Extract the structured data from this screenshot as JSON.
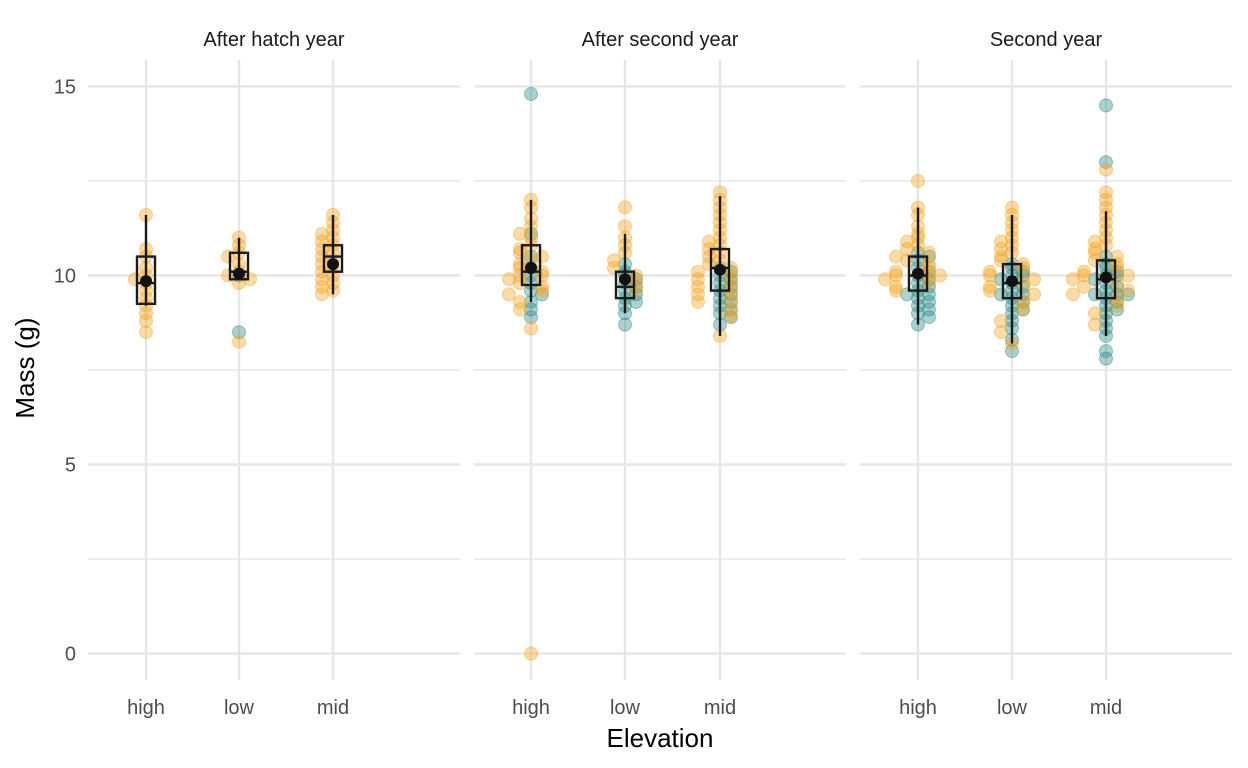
{
  "chart_data": {
    "type": "scatter",
    "title": "",
    "xlabel": "Elevation",
    "ylabel": "Mass (g)",
    "ylim": [
      -0.7,
      15.7
    ],
    "yticks": [
      0,
      5,
      10,
      15
    ],
    "grid": true,
    "categories": [
      "high",
      "low",
      "mid"
    ],
    "colors": {
      "orange": "#F5A623",
      "teal": "#2E8B8B",
      "box": "#1a1a1a",
      "grid": "#e6e6e6"
    },
    "panels": [
      {
        "title": "After hatch year",
        "groups": [
          {
            "category": "high",
            "box": {
              "lower": 9.2,
              "q1": 9.25,
              "median": 9.8,
              "q3": 10.5,
              "upper": 11.6,
              "mean": 9.85
            },
            "points": {
              "orange": [
                11.6,
                10.7,
                10.5,
                10.2,
                10.0,
                9.9,
                9.8,
                9.6,
                9.4,
                9.2,
                9.0,
                8.8,
                8.5
              ],
              "teal": []
            }
          },
          {
            "category": "low",
            "box": {
              "lower": 9.9,
              "q1": 9.9,
              "median": 10.1,
              "q3": 10.6,
              "upper": 11.0,
              "mean": 10.05
            },
            "points": {
              "orange": [
                11.0,
                10.8,
                10.6,
                10.5,
                10.3,
                10.1,
                10.0,
                9.9,
                9.8,
                8.25
              ],
              "teal": [
                8.5,
                10.0
              ]
            }
          },
          {
            "category": "mid",
            "box": {
              "lower": 9.5,
              "q1": 10.1,
              "median": 10.5,
              "q3": 10.8,
              "upper": 11.6,
              "mean": 10.3
            },
            "points": {
              "orange": [
                11.6,
                11.4,
                11.2,
                11.1,
                11.0,
                10.9,
                10.8,
                10.7,
                10.6,
                10.5,
                10.4,
                10.3,
                10.2,
                10.1,
                10.0,
                9.9,
                9.8,
                9.7,
                9.6,
                9.5
              ],
              "teal": []
            }
          }
        ]
      },
      {
        "title": "After second year",
        "groups": [
          {
            "category": "high",
            "box": {
              "lower": 9.3,
              "q1": 9.75,
              "median": 10.1,
              "q3": 10.8,
              "upper": 12.0,
              "mean": 10.2
            },
            "points": {
              "orange": [
                12.0,
                11.8,
                11.5,
                11.3,
                11.1,
                11.0,
                10.8,
                10.7,
                10.6,
                10.5,
                10.4,
                10.3,
                10.2,
                10.1,
                10.0,
                10.0,
                9.9,
                9.8,
                9.7,
                9.6,
                9.5,
                9.3,
                9.1,
                8.6,
                0.0
              ],
              "teal": [
                14.8,
                11.1,
                10.5,
                10.2,
                10.0,
                9.8,
                9.6,
                9.5,
                9.3,
                9.1,
                8.9
              ]
            }
          },
          {
            "category": "low",
            "box": {
              "lower": 9.0,
              "q1": 9.4,
              "median": 9.7,
              "q3": 10.1,
              "upper": 11.1,
              "mean": 9.9
            },
            "points": {
              "orange": [
                11.8,
                11.3,
                11.0,
                10.8,
                10.6,
                10.4,
                10.2,
                10.0,
                9.8,
                9.6
              ],
              "teal": [
                10.3,
                10.1,
                10.0,
                9.9,
                9.8,
                9.7,
                9.6,
                9.5,
                9.4,
                9.3,
                9.2,
                9.0,
                8.7
              ]
            }
          },
          {
            "category": "mid",
            "box": {
              "lower": 8.4,
              "q1": 9.6,
              "median": 10.2,
              "q3": 10.7,
              "upper": 12.1,
              "mean": 10.15
            },
            "points": {
              "orange": [
                12.2,
                12.0,
                11.8,
                11.6,
                11.4,
                11.2,
                11.0,
                10.9,
                10.8,
                10.7,
                10.6,
                10.5,
                10.4,
                10.3,
                10.2,
                10.1,
                10.0,
                9.9,
                9.8,
                9.7,
                9.6,
                9.5,
                9.4,
                9.3,
                9.1,
                8.9,
                8.4
              ],
              "teal": [
                10.2,
                10.1,
                10.0,
                9.9,
                9.8,
                9.7,
                9.6,
                9.5,
                9.4,
                9.3,
                9.2,
                9.1,
                9.0,
                8.9,
                8.7
              ]
            }
          }
        ]
      },
      {
        "title": "Second year",
        "groups": [
          {
            "category": "high",
            "box": {
              "lower": 8.7,
              "q1": 9.6,
              "median": 10.0,
              "q3": 10.5,
              "upper": 11.8,
              "mean": 10.05
            },
            "points": {
              "orange": [
                12.5,
                11.8,
                11.6,
                11.3,
                11.1,
                11.0,
                10.9,
                10.8,
                10.7,
                10.6,
                10.5,
                10.4,
                10.3,
                10.2,
                10.1,
                10.0,
                10.0,
                10.0,
                9.9,
                9.8,
                9.7,
                9.6
              ],
              "teal": [
                10.6,
                10.5,
                10.4,
                10.2,
                10.1,
                10.0,
                9.9,
                9.8,
                9.7,
                9.6,
                9.5,
                9.5,
                9.4,
                9.3,
                9.2,
                9.1,
                9.0,
                8.9,
                8.7
              ]
            }
          },
          {
            "category": "low",
            "box": {
              "lower": 8.2,
              "q1": 9.4,
              "median": 9.8,
              "q3": 10.3,
              "upper": 11.6,
              "mean": 9.85
            },
            "points": {
              "orange": [
                11.8,
                11.6,
                11.4,
                11.2,
                11.0,
                10.9,
                10.8,
                10.7,
                10.6,
                10.5,
                10.4,
                10.3,
                10.2,
                10.1,
                10.0,
                9.9,
                9.8,
                9.7,
                9.6,
                9.5,
                9.3,
                9.1,
                8.8,
                8.5,
                8.2
              ],
              "teal": [
                10.3,
                10.2,
                10.1,
                10.0,
                10.0,
                9.9,
                9.8,
                9.7,
                9.6,
                9.5,
                9.5,
                9.4,
                9.3,
                9.2,
                9.1,
                9.0,
                8.8,
                8.6,
                8.3,
                8.0
              ]
            }
          },
          {
            "category": "mid",
            "box": {
              "lower": 8.4,
              "q1": 9.4,
              "median": 9.9,
              "q3": 10.4,
              "upper": 11.7,
              "mean": 9.95
            },
            "points": {
              "orange": [
                12.8,
                12.2,
                12.0,
                11.8,
                11.6,
                11.4,
                11.2,
                11.0,
                10.9,
                10.8,
                10.7,
                10.6,
                10.5,
                10.4,
                10.3,
                10.2,
                10.1,
                10.0,
                10.0,
                9.9,
                9.8,
                9.7,
                9.6,
                9.5,
                9.4,
                9.2,
                9.0,
                8.7
              ],
              "teal": [
                14.5,
                13.0,
                10.5,
                10.3,
                10.2,
                10.1,
                10.0,
                10.0,
                9.9,
                9.8,
                9.7,
                9.6,
                9.5,
                9.5,
                9.5,
                9.4,
                9.3,
                9.2,
                9.1,
                9.0,
                8.8,
                8.6,
                8.4,
                8.0,
                7.8
              ]
            }
          }
        ]
      }
    ]
  }
}
